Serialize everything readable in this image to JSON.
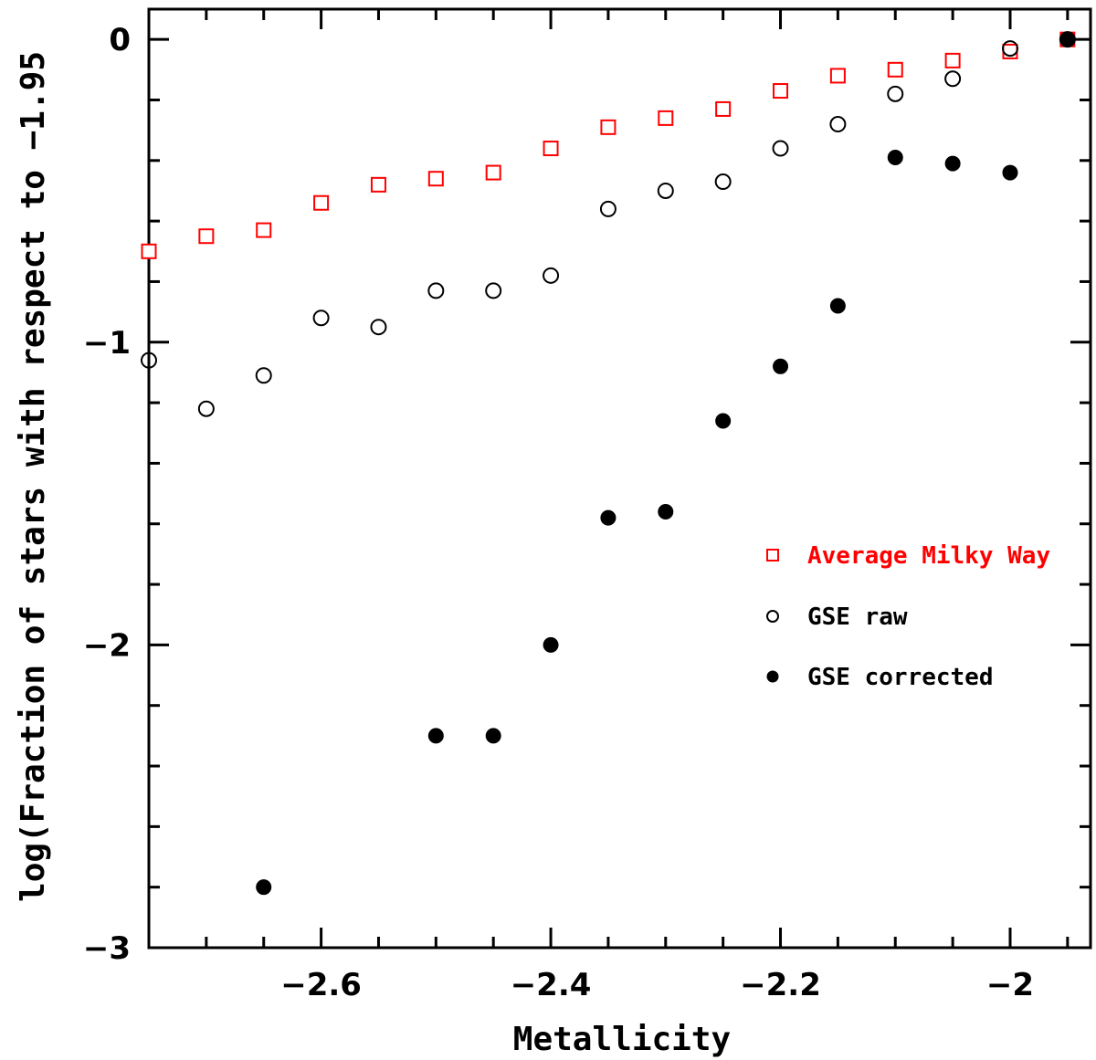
{
  "chart_data": {
    "type": "scatter",
    "title": "",
    "xlabel": "Metallicity",
    "ylabel": "log(Fraction of stars with respect to −1.95",
    "xlim": [
      -2.75,
      -1.93
    ],
    "ylim": [
      -3,
      0.1
    ],
    "x_ticks": [
      -2.6,
      -2.4,
      -2.2,
      -2
    ],
    "x_tick_labels": [
      "−2.6",
      "−2.4",
      "−2.2",
      "−2"
    ],
    "y_ticks": [
      0,
      -1,
      -2,
      -3
    ],
    "y_tick_labels": [
      "0",
      "−1",
      "−2",
      "−3"
    ],
    "legend": "middle-right",
    "series": [
      {
        "name": "Average Milky Way",
        "marker": "open-square",
        "color": "#ff0000",
        "x": [
          -2.75,
          -2.7,
          -2.65,
          -2.6,
          -2.55,
          -2.5,
          -2.45,
          -2.4,
          -2.35,
          -2.3,
          -2.25,
          -2.2,
          -2.15,
          -2.1,
          -2.05,
          -2.0,
          -1.95
        ],
        "y": [
          -0.7,
          -0.65,
          -0.63,
          -0.54,
          -0.48,
          -0.46,
          -0.44,
          -0.36,
          -0.29,
          -0.26,
          -0.23,
          -0.17,
          -0.12,
          -0.1,
          -0.07,
          -0.04,
          0.0
        ]
      },
      {
        "name": "GSE raw",
        "marker": "open-circle",
        "color": "#000000",
        "x": [
          -2.75,
          -2.7,
          -2.65,
          -2.6,
          -2.55,
          -2.5,
          -2.45,
          -2.4,
          -2.35,
          -2.3,
          -2.25,
          -2.2,
          -2.15,
          -2.1,
          -2.05,
          -2.0,
          -1.95
        ],
        "y": [
          -1.06,
          -1.22,
          -1.11,
          -0.92,
          -0.95,
          -0.83,
          -0.83,
          -0.78,
          -0.56,
          -0.5,
          -0.47,
          -0.36,
          -0.28,
          -0.18,
          -0.13,
          -0.03,
          0.0
        ]
      },
      {
        "name": "GSE corrected",
        "marker": "filled-circle",
        "color": "#000000",
        "x": [
          -2.65,
          -2.5,
          -2.45,
          -2.4,
          -2.35,
          -2.3,
          -2.25,
          -2.2,
          -2.15,
          -2.1,
          -2.05,
          -2.0,
          -1.95
        ],
        "y": [
          -2.8,
          -2.3,
          -2.3,
          -2.0,
          -1.58,
          -1.56,
          -1.26,
          -1.08,
          -0.88,
          -0.39,
          -0.41,
          -0.44,
          0.0
        ]
      }
    ]
  }
}
